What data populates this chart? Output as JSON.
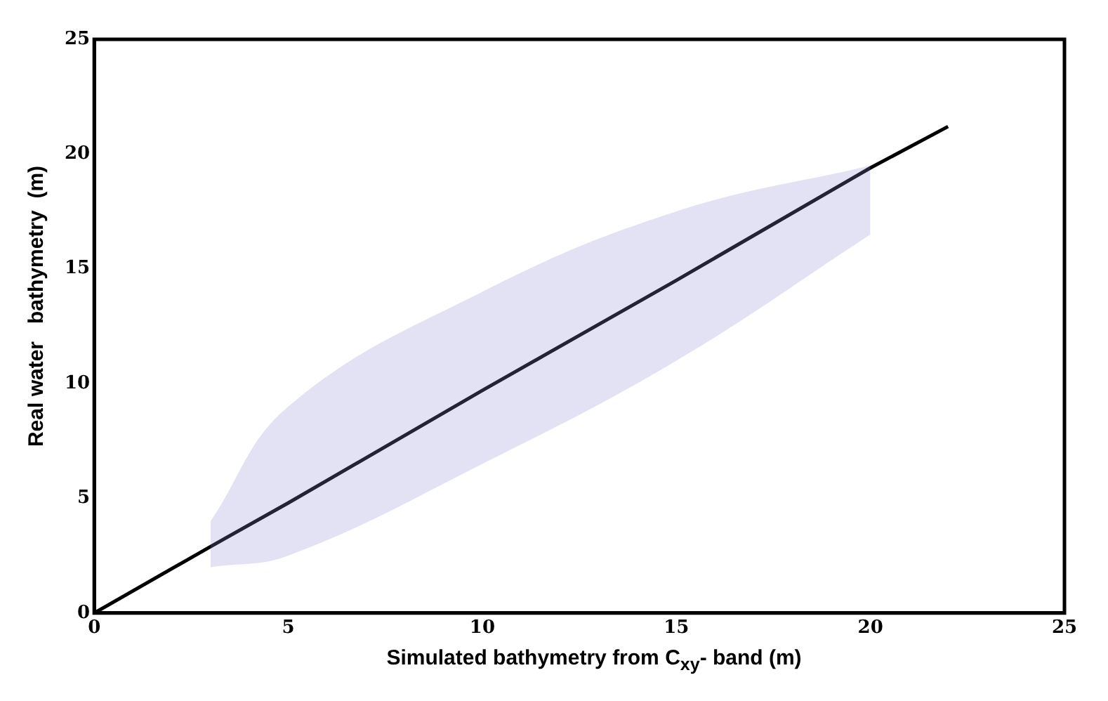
{
  "chart_data": {
    "type": "line",
    "xlabel": "Simulated bathymetry from C$_{xy}$- band (m)",
    "ylabel": "Real water   bathymetry  (m)",
    "series": [
      {
        "color": "#000000",
        "x": [
          0,
          3,
          5,
          10,
          15,
          20,
          22
        ],
        "values": [
          0,
          2.9,
          4.8,
          9.7,
          14.5,
          19.4,
          21.2
        ],
        "lower": [
          null,
          2,
          2.5,
          6.5,
          11,
          16.5,
          null
        ],
        "upper": [
          null,
          4,
          9,
          14,
          17.5,
          19.5,
          null
        ]
      }
    ],
    "xlim": [
      0,
      25
    ],
    "xticks": [
      0,
      5,
      10,
      15,
      20,
      25
    ],
    "ylim": [
      0,
      25
    ],
    "yticks": [
      0,
      5,
      10,
      15,
      20,
      25
    ],
    "grid": false,
    "legend": false,
    "marker": "none",
    "line_style": "solid"
  }
}
